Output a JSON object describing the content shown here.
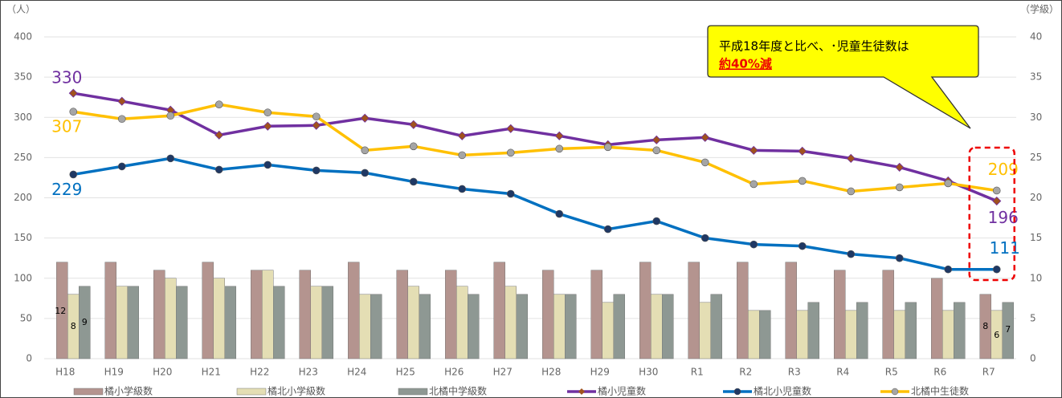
{
  "chart_data": {
    "type": "combo",
    "y_axis_label": "（人）",
    "y2_axis_label": "（学級）",
    "categories": [
      "H18",
      "H19",
      "H20",
      "H21",
      "H22",
      "H23",
      "H24",
      "H25",
      "H26",
      "H27",
      "H28",
      "H29",
      "H30",
      "R1",
      "R2",
      "R3",
      "R4",
      "R5",
      "R6",
      "R7"
    ],
    "ylim": [
      0,
      400
    ],
    "yticks": [
      0,
      50,
      100,
      150,
      200,
      250,
      300,
      350,
      400
    ],
    "y2lim": [
      0,
      40
    ],
    "y2ticks": [
      0,
      5,
      10,
      15,
      20,
      25,
      30,
      35,
      40
    ],
    "series": [
      {
        "name": "橘小学級数",
        "type": "bar",
        "axis": "y2",
        "color": "#b4948f",
        "values": [
          12,
          12,
          11,
          12,
          11,
          11,
          12,
          11,
          11,
          12,
          11,
          11,
          12,
          12,
          12,
          12,
          11,
          11,
          10,
          8
        ]
      },
      {
        "name": "橘北小学級数",
        "type": "bar",
        "axis": "y2",
        "color": "#e4deb4",
        "values": [
          8,
          9,
          10,
          10,
          11,
          9,
          8,
          9,
          9,
          9,
          8,
          7,
          8,
          7,
          6,
          6,
          6,
          6,
          6,
          6
        ]
      },
      {
        "name": "北橘中学級数",
        "type": "bar",
        "axis": "y2",
        "color": "#8e9893",
        "values": [
          9,
          9,
          9,
          9,
          9,
          9,
          8,
          8,
          8,
          8,
          8,
          8,
          8,
          8,
          6,
          7,
          7,
          7,
          7,
          7
        ]
      },
      {
        "name": "橘小児童数",
        "type": "line",
        "color": "#7030a0",
        "marker_color": "#a0521e",
        "values": [
          330,
          320,
          309,
          278,
          289,
          290,
          299,
          291,
          277,
          286,
          277,
          266,
          272,
          275,
          259,
          258,
          249,
          238,
          221,
          196
        ]
      },
      {
        "name": "橘北小児童数",
        "type": "line",
        "color": "#0070c0",
        "marker_color": "#1f3864",
        "values": [
          229,
          239,
          249,
          235,
          241,
          234,
          231,
          220,
          211,
          205,
          180,
          161,
          171,
          150,
          142,
          140,
          130,
          125,
          111,
          111
        ]
      },
      {
        "name": "北橘中生徒数",
        "type": "line",
        "color": "#ffc000",
        "marker_color": "#a5a5a5",
        "values": [
          307,
          298,
          302,
          316,
          306,
          301,
          259,
          264,
          253,
          256,
          261,
          263,
          259,
          244,
          217,
          221,
          208,
          213,
          218,
          209
        ]
      }
    ],
    "annotations": [
      "平成18年度と比べ、･児童生徒数は",
      "約40%減"
    ],
    "grid": true
  }
}
